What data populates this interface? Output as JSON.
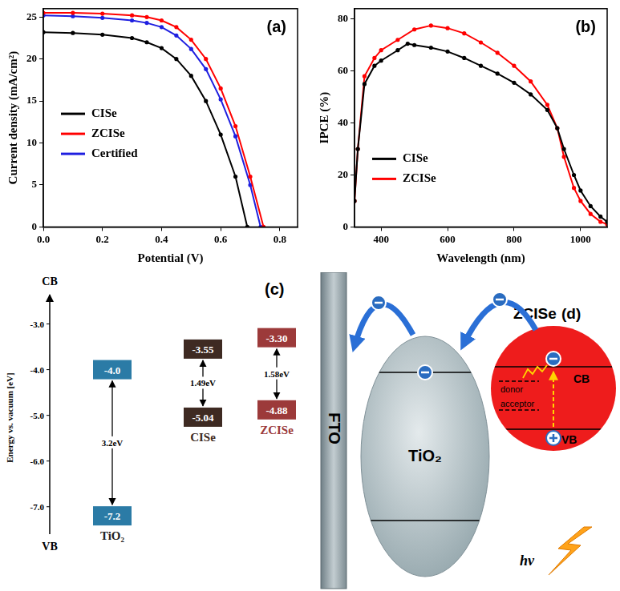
{
  "chart_data": [
    {
      "type": "line",
      "panel_label": "(a)",
      "x_label": "Potential (V)",
      "y_label": "Current density (mA/cm²)",
      "xlim": [
        0,
        0.86
      ],
      "xticks": [
        {
          "value": 0,
          "label": "0.0"
        },
        0.2,
        0.4,
        0.6,
        0.8
      ],
      "ylim": [
        0,
        26
      ],
      "yticks": [
        0,
        5,
        10,
        15,
        20,
        25
      ],
      "grid": false,
      "legend": "center left",
      "marker": "circle",
      "series": [
        {
          "name": "CISe",
          "color": "#000000",
          "x": [
            0,
            0.1,
            0.2,
            0.3,
            0.35,
            0.4,
            0.45,
            0.5,
            0.55,
            0.6,
            0.65,
            0.69
          ],
          "values": [
            23.2,
            23.1,
            22.9,
            22.5,
            22.0,
            21.3,
            20.0,
            18.0,
            15.0,
            11.0,
            6.0,
            0
          ]
        },
        {
          "name": "ZCISe",
          "color": "#ff0000",
          "x": [
            0,
            0.1,
            0.2,
            0.3,
            0.35,
            0.4,
            0.45,
            0.5,
            0.55,
            0.6,
            0.65,
            0.7,
            0.745
          ],
          "values": [
            25.5,
            25.5,
            25.4,
            25.2,
            25.0,
            24.6,
            23.8,
            22.3,
            20.0,
            16.5,
            12.0,
            6.0,
            0
          ]
        },
        {
          "name": "Certified",
          "color": "#1f1fe0",
          "x": [
            0,
            0.1,
            0.2,
            0.3,
            0.35,
            0.4,
            0.45,
            0.5,
            0.55,
            0.6,
            0.65,
            0.7,
            0.735
          ],
          "values": [
            25.2,
            25.1,
            24.9,
            24.6,
            24.3,
            23.8,
            22.8,
            21.2,
            18.8,
            15.2,
            10.8,
            5.0,
            0
          ]
        }
      ]
    },
    {
      "type": "line",
      "panel_label": "(b)",
      "x_label": "Wavelength (nm)",
      "y_label": "IPCE (%)",
      "xlim": [
        320,
        1080
      ],
      "xticks": [
        400,
        600,
        800,
        1000
      ],
      "ylim": [
        0,
        84
      ],
      "yticks": [
        0,
        20,
        40,
        60,
        80
      ],
      "grid": false,
      "legend": "lower left",
      "marker": "circle",
      "series": [
        {
          "name": "CISe",
          "color": "#000000",
          "x": [
            320,
            330,
            350,
            380,
            400,
            450,
            480,
            500,
            550,
            600,
            650,
            700,
            750,
            800,
            850,
            900,
            930,
            950,
            980,
            1000,
            1030,
            1060,
            1080
          ],
          "values": [
            10,
            30,
            55,
            62,
            64,
            68,
            70.5,
            70,
            69,
            67.5,
            65,
            62,
            59,
            55.5,
            51,
            45,
            38,
            30,
            20,
            14,
            8,
            4,
            2
          ]
        },
        {
          "name": "ZCISe",
          "color": "#ff0000",
          "x": [
            320,
            330,
            350,
            380,
            400,
            450,
            500,
            550,
            600,
            650,
            700,
            750,
            800,
            850,
            900,
            930,
            950,
            980,
            1000,
            1030,
            1060,
            1080
          ],
          "values": [
            10,
            30,
            58,
            65,
            68,
            72,
            76,
            77.5,
            76.5,
            74.5,
            71,
            67,
            62,
            56,
            47,
            38,
            27,
            15,
            10,
            5,
            2,
            1
          ]
        }
      ]
    }
  ],
  "panel_c": {
    "panel_label": "(c)",
    "axis_label": "Energy vs. vacuum [eV]",
    "top_label": "CB",
    "bottom_label": "VB",
    "ylim": [
      -7.6,
      -2.5
    ],
    "yticks": [
      {
        "value": -3,
        "label": "-3.0"
      },
      {
        "value": -4,
        "label": "-4.0"
      },
      {
        "value": -5,
        "label": "-5.0"
      },
      {
        "value": -6,
        "label": "-6.0"
      },
      {
        "value": -7,
        "label": "-7.0"
      }
    ],
    "materials": [
      {
        "name": "TiO₂",
        "color": "#2b7ba6",
        "cb": {
          "value": -4.0,
          "label": "-4.0"
        },
        "vb": {
          "value": -7.2,
          "label": "-7.2"
        },
        "gap": {
          "value": 3.2,
          "label": "3.2eV"
        }
      },
      {
        "name": "CISe",
        "color": "#3e2a22",
        "cb": {
          "value": -3.55,
          "label": "-3.55"
        },
        "vb": {
          "value": -5.04,
          "label": "-5.04"
        },
        "gap": {
          "value": 1.49,
          "label": "1.49eV"
        }
      },
      {
        "name": "ZCISe",
        "color": "#9c3a3a",
        "cb": {
          "value": -3.3,
          "label": "-3.30"
        },
        "vb": {
          "value": -4.88,
          "label": "-4.88"
        },
        "gap": {
          "value": 1.58,
          "label": "1.58eV"
        }
      }
    ]
  },
  "panel_d": {
    "panel_label": "(d)",
    "substrate": "FTO",
    "transport": "TiO₂",
    "absorber": "ZCISe",
    "band_top": "CB",
    "band_bottom": "VB",
    "donor": "donor",
    "acceptor": "acceptor",
    "light": "hν"
  }
}
